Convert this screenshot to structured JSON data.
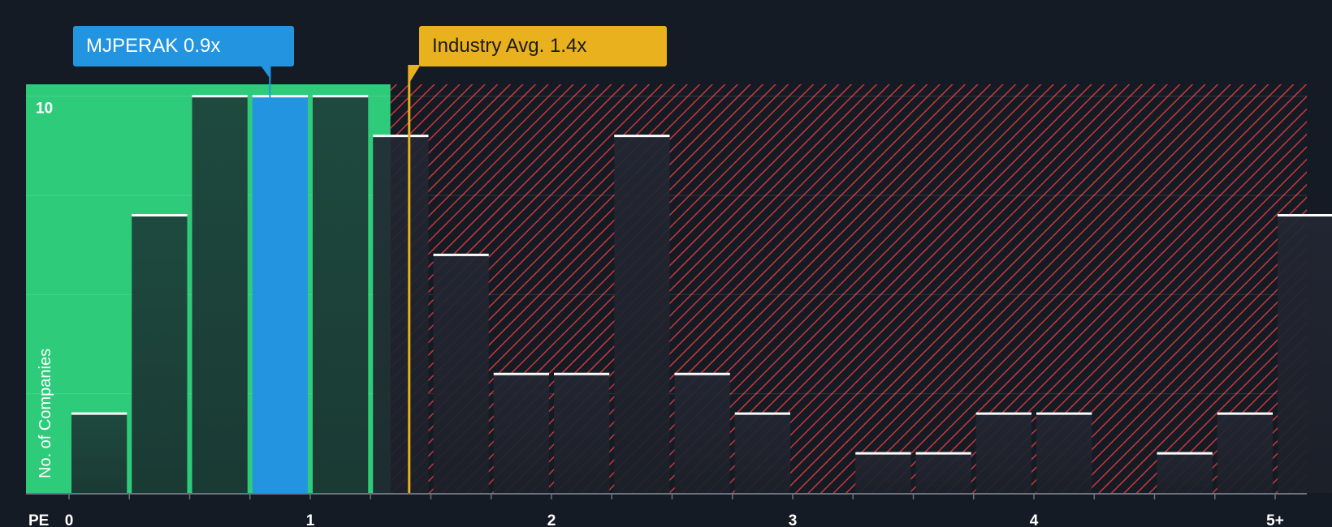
{
  "chart_data": {
    "type": "bar",
    "title": "",
    "xlabel": "PE",
    "ylabel": "No. of Companies",
    "x_ticks": [
      "0",
      "1",
      "2",
      "3",
      "4",
      "5+"
    ],
    "y_ticks": [
      "10"
    ],
    "ylim": [
      0,
      10.3
    ],
    "bin_width": 0.25,
    "bins": [
      {
        "x_start": 0.0,
        "count": 2
      },
      {
        "x_start": 0.25,
        "count": 7
      },
      {
        "x_start": 0.5,
        "count": 10
      },
      {
        "x_start": 0.75,
        "count": 10,
        "highlight": true
      },
      {
        "x_start": 1.0,
        "count": 10
      },
      {
        "x_start": 1.25,
        "count": 9
      },
      {
        "x_start": 1.5,
        "count": 6
      },
      {
        "x_start": 1.75,
        "count": 3
      },
      {
        "x_start": 2.0,
        "count": 3
      },
      {
        "x_start": 2.25,
        "count": 9
      },
      {
        "x_start": 2.5,
        "count": 3
      },
      {
        "x_start": 2.75,
        "count": 2
      },
      {
        "x_start": 3.0,
        "count": 0
      },
      {
        "x_start": 3.25,
        "count": 1
      },
      {
        "x_start": 3.5,
        "count": 1
      },
      {
        "x_start": 3.75,
        "count": 2
      },
      {
        "x_start": 4.0,
        "count": 2
      },
      {
        "x_start": 4.25,
        "count": 0
      },
      {
        "x_start": 4.5,
        "count": 1
      },
      {
        "x_start": 4.75,
        "count": 2
      },
      {
        "x_start": 5.0,
        "count": 7
      }
    ],
    "company": {
      "label": "MJPERAK 0.9x",
      "value": 0.9
    },
    "industry_avg": {
      "label": "Industry Avg. 1.4x",
      "value": 1.4
    },
    "grid": true,
    "colors": {
      "background": "#151b24",
      "undervalued_region": "#2ecc7a",
      "overvalued_hatch": "#c8383a",
      "bar_dark": "#1e4a3e",
      "bar_highlight": "#2394e0",
      "industry_line": "#e9b11d",
      "cap_line": "#ffffff"
    }
  }
}
